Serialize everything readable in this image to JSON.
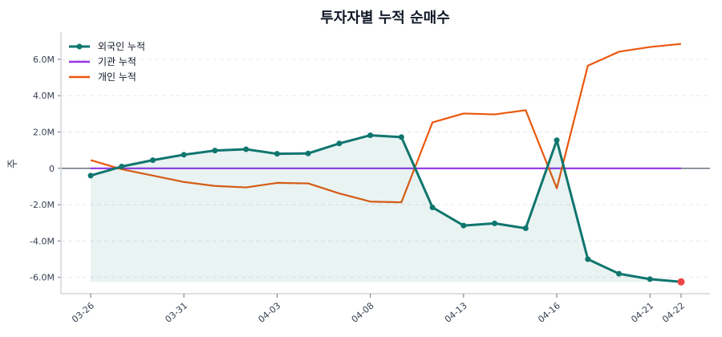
{
  "chart_data": {
    "type": "line",
    "title": "투자자별 누적 순매수",
    "xlabel": "",
    "ylabel": "주",
    "x": [
      "03-26",
      "03-27",
      "03-28",
      "03-31",
      "04-01",
      "04-02",
      "04-03",
      "04-04",
      "04-07",
      "04-08",
      "04-09",
      "04-10",
      "04-13",
      "04-14",
      "04-15",
      "04-16",
      "04-17",
      "04-18",
      "04-21",
      "04-22"
    ],
    "xtick_labels": [
      "03-26",
      "03-31",
      "04-03",
      "04-08",
      "04-13",
      "04-16",
      "04-21",
      "04-22"
    ],
    "ylim": [
      -6900000,
      7500000
    ],
    "yticks": [
      -6000000,
      -4000000,
      -2000000,
      0,
      2000000,
      4000000,
      6000000
    ],
    "ytick_labels": [
      "-6.0M",
      "-4.0M",
      "-2.0M",
      "0",
      "2.0M",
      "4.0M",
      "6.0M"
    ],
    "grid": true,
    "legend": "top-left",
    "series": [
      {
        "name": "외국인 누적",
        "color": "#0f766e",
        "markers": true,
        "fill": true,
        "values": [
          -400000,
          100000,
          450000,
          750000,
          980000,
          1050000,
          800000,
          820000,
          1370000,
          1820000,
          1720000,
          -2150000,
          -3150000,
          -3030000,
          -3300000,
          1550000,
          -5000000,
          -5800000,
          -6100000,
          -6250000
        ]
      },
      {
        "name": "기관 누적",
        "color": "#9333ea",
        "markers": false,
        "fill": false,
        "values": [
          0,
          0,
          0,
          0,
          0,
          0,
          0,
          0,
          0,
          0,
          0,
          0,
          0,
          0,
          0,
          0,
          0,
          0,
          0,
          0
        ]
      },
      {
        "name": "개인 누적",
        "color": "#ea580c",
        "markers": false,
        "fill": false,
        "values": [
          450000,
          -50000,
          -400000,
          -750000,
          -970000,
          -1050000,
          -800000,
          -830000,
          -1380000,
          -1830000,
          -1870000,
          2530000,
          3020000,
          2970000,
          3200000,
          -1100000,
          5650000,
          6420000,
          6680000,
          6850000
        ]
      }
    ],
    "highlight_last_point_color": "#ef4444"
  }
}
